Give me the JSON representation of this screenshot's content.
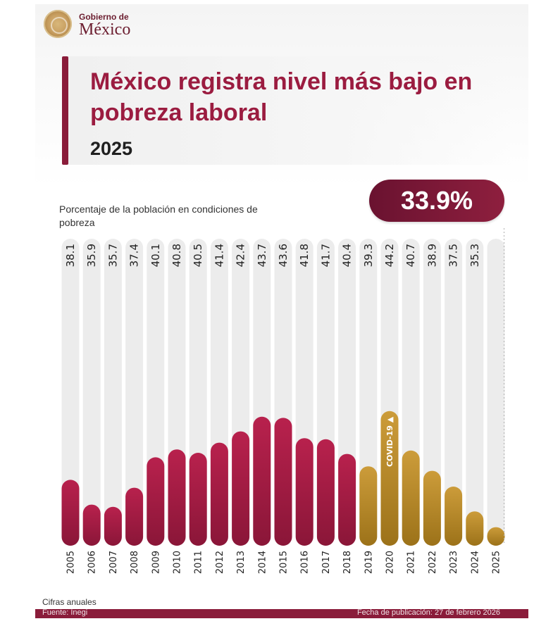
{
  "logo": {
    "top": "Gobierno de",
    "main": "México"
  },
  "title": "México registra nivel más bajo en pobreza laboral",
  "subtitle": "2025",
  "highlight": "33.9%",
  "chart_data": {
    "type": "bar",
    "ylabel": "Porcentaje de la población en condiciones de pobreza",
    "categories": [
      "2005",
      "2006",
      "2007",
      "2008",
      "2009",
      "2010",
      "2011",
      "2012",
      "2013",
      "2014",
      "2015",
      "2016",
      "2017",
      "2018",
      "2019",
      "2020",
      "2021",
      "2022",
      "2023",
      "2024",
      "2025"
    ],
    "value_labels": [
      "38.1",
      "35.9",
      "35.7",
      "37.4",
      "40.1",
      "40.8",
      "40.5",
      "41.4",
      "42.4",
      "43.7",
      "43.6",
      "41.8",
      "41.7",
      "40.4",
      "39.3",
      "44.2",
      "40.7",
      "38.9",
      "37.5",
      "35.3",
      ""
    ],
    "values": [
      38.1,
      35.9,
      35.7,
      37.4,
      40.1,
      40.8,
      40.5,
      41.4,
      42.4,
      43.7,
      43.6,
      41.8,
      41.7,
      40.4,
      39.3,
      44.2,
      40.7,
      38.9,
      37.5,
      35.3,
      33.9
    ],
    "covid_year": "2020",
    "covid_label": "COVID-19 ▲",
    "colors": {
      "before": "#a41c44",
      "after": "#c08f2b",
      "covid_bar": "#a67a1e"
    }
  },
  "note": "Cifras anuales",
  "footer": {
    "source": "Fuente: Inegi",
    "date": "Fecha de publicación: 27 de febrero 2026"
  }
}
